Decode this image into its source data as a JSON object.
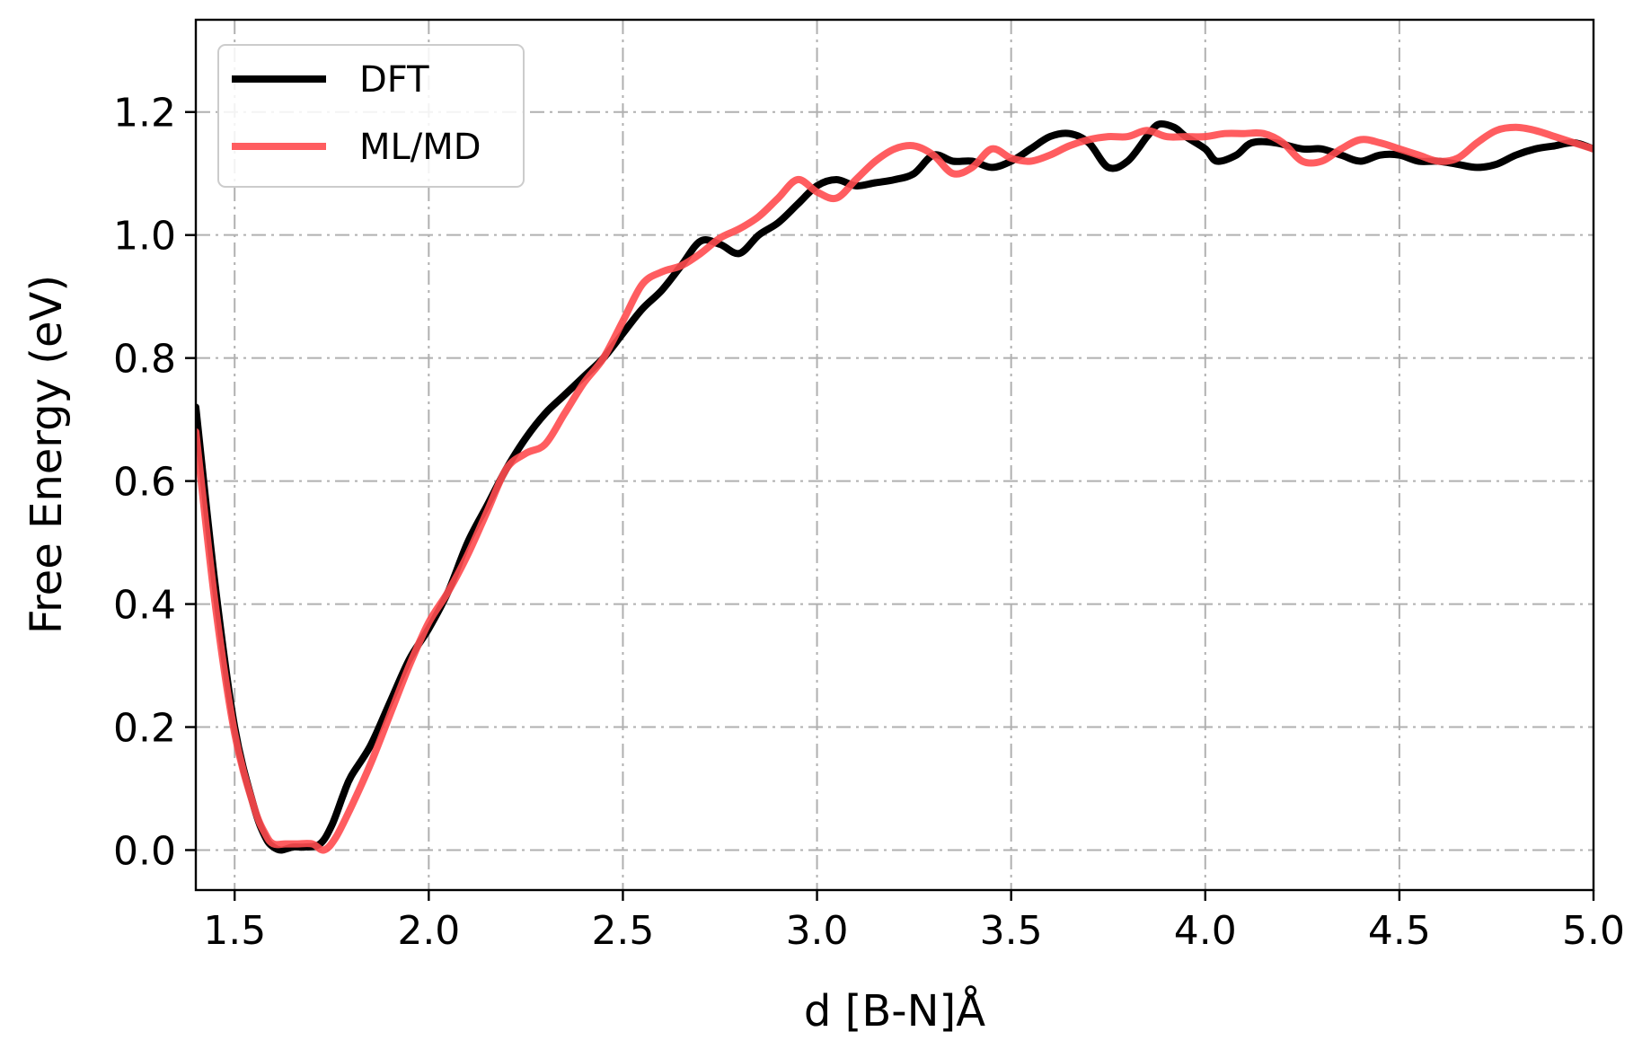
{
  "chart_data": {
    "type": "line",
    "xlabel": "d [B-N]Å",
    "ylabel": "Free Energy (eV)",
    "xlim": [
      1.4,
      5.0
    ],
    "ylim": [
      -0.065,
      1.35
    ],
    "xticks": [
      1.5,
      2.0,
      2.5,
      3.0,
      3.5,
      4.0,
      4.5,
      5.0
    ],
    "xtick_labels": [
      "1.5",
      "2.0",
      "2.5",
      "3.0",
      "3.5",
      "4.0",
      "4.5",
      "5.0"
    ],
    "yticks": [
      0.0,
      0.2,
      0.4,
      0.6,
      0.8,
      1.0,
      1.2
    ],
    "ytick_labels": [
      "0.0",
      "0.2",
      "0.4",
      "0.6",
      "0.8",
      "1.0",
      "1.2"
    ],
    "grid": true,
    "legend_position": "top-left",
    "series": [
      {
        "name": "DFT",
        "color": "#000000",
        "x": [
          1.4,
          1.45,
          1.5,
          1.55,
          1.58,
          1.6,
          1.62,
          1.65,
          1.68,
          1.72,
          1.75,
          1.78,
          1.8,
          1.85,
          1.9,
          1.95,
          2.0,
          2.05,
          2.1,
          2.15,
          2.2,
          2.25,
          2.3,
          2.35,
          2.4,
          2.45,
          2.5,
          2.55,
          2.6,
          2.65,
          2.7,
          2.75,
          2.8,
          2.85,
          2.9,
          2.95,
          3.0,
          3.05,
          3.1,
          3.15,
          3.2,
          3.25,
          3.3,
          3.35,
          3.4,
          3.45,
          3.5,
          3.55,
          3.6,
          3.65,
          3.7,
          3.75,
          3.8,
          3.85,
          3.88,
          3.92,
          3.95,
          4.0,
          4.03,
          4.08,
          4.12,
          4.18,
          4.25,
          4.3,
          4.35,
          4.4,
          4.45,
          4.5,
          4.55,
          4.6,
          4.65,
          4.7,
          4.75,
          4.8,
          4.85,
          4.9,
          4.95,
          5.0
        ],
        "y": [
          0.72,
          0.43,
          0.2,
          0.07,
          0.02,
          0.005,
          0.0,
          0.005,
          0.005,
          0.01,
          0.04,
          0.09,
          0.12,
          0.17,
          0.24,
          0.31,
          0.36,
          0.42,
          0.5,
          0.56,
          0.62,
          0.67,
          0.71,
          0.74,
          0.77,
          0.8,
          0.84,
          0.88,
          0.91,
          0.95,
          0.99,
          0.985,
          0.97,
          1.0,
          1.02,
          1.05,
          1.08,
          1.09,
          1.08,
          1.085,
          1.09,
          1.1,
          1.13,
          1.12,
          1.12,
          1.11,
          1.12,
          1.14,
          1.16,
          1.165,
          1.15,
          1.11,
          1.12,
          1.16,
          1.18,
          1.175,
          1.16,
          1.14,
          1.12,
          1.13,
          1.15,
          1.15,
          1.14,
          1.14,
          1.13,
          1.12,
          1.13,
          1.13,
          1.12,
          1.12,
          1.115,
          1.11,
          1.115,
          1.13,
          1.14,
          1.145,
          1.15,
          1.14
        ]
      },
      {
        "name": "ML/MD",
        "color": "#ff4b4f",
        "x": [
          1.4,
          1.45,
          1.5,
          1.55,
          1.58,
          1.6,
          1.63,
          1.66,
          1.7,
          1.73,
          1.76,
          1.8,
          1.85,
          1.9,
          1.95,
          2.0,
          2.05,
          2.1,
          2.15,
          2.2,
          2.25,
          2.3,
          2.35,
          2.4,
          2.45,
          2.5,
          2.55,
          2.6,
          2.65,
          2.7,
          2.75,
          2.8,
          2.85,
          2.9,
          2.95,
          3.0,
          3.05,
          3.1,
          3.15,
          3.2,
          3.25,
          3.3,
          3.35,
          3.4,
          3.45,
          3.5,
          3.55,
          3.6,
          3.65,
          3.7,
          3.75,
          3.8,
          3.85,
          3.9,
          3.95,
          4.0,
          4.05,
          4.1,
          4.15,
          4.2,
          4.25,
          4.3,
          4.35,
          4.4,
          4.45,
          4.5,
          4.55,
          4.6,
          4.65,
          4.7,
          4.75,
          4.8,
          4.85,
          4.9,
          4.95,
          5.0
        ],
        "y": [
          0.68,
          0.4,
          0.19,
          0.07,
          0.025,
          0.01,
          0.01,
          0.01,
          0.01,
          0.0,
          0.02,
          0.07,
          0.14,
          0.22,
          0.3,
          0.37,
          0.42,
          0.48,
          0.55,
          0.62,
          0.645,
          0.66,
          0.71,
          0.76,
          0.8,
          0.86,
          0.92,
          0.94,
          0.95,
          0.97,
          0.995,
          1.01,
          1.03,
          1.06,
          1.09,
          1.07,
          1.06,
          1.09,
          1.12,
          1.14,
          1.145,
          1.13,
          1.1,
          1.11,
          1.14,
          1.125,
          1.12,
          1.13,
          1.145,
          1.155,
          1.16,
          1.16,
          1.17,
          1.16,
          1.16,
          1.16,
          1.165,
          1.165,
          1.165,
          1.15,
          1.12,
          1.12,
          1.14,
          1.155,
          1.15,
          1.14,
          1.13,
          1.12,
          1.125,
          1.15,
          1.17,
          1.175,
          1.17,
          1.16,
          1.15,
          1.14
        ]
      }
    ]
  }
}
